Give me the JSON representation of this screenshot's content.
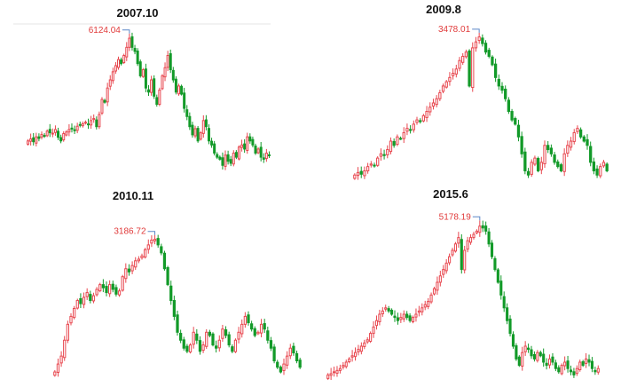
{
  "colors": {
    "up": "#e8474f",
    "down": "#129a29",
    "peak": "#e03a3a",
    "leader": "#5b87c7"
  },
  "chart_data": [
    {
      "type": "candlestick",
      "title": "2007.10",
      "peak_label": "6124.04",
      "peak_index": 37,
      "ylim": [
        2700,
        6300
      ],
      "closes": [
        3600,
        3650,
        3580,
        3700,
        3660,
        3760,
        3720,
        3840,
        3800,
        3790,
        3880,
        3690,
        3600,
        3780,
        3820,
        3880,
        3900,
        3850,
        3960,
        3990,
        4020,
        4060,
        4000,
        4100,
        4150,
        3950,
        4250,
        4620,
        4550,
        4900,
        5100,
        5300,
        5450,
        5600,
        5500,
        5700,
        5900,
        6124,
        5900,
        5800,
        5500,
        5200,
        5350,
        4900,
        4800,
        5100,
        4700,
        4500,
        4850,
        5200,
        5400,
        5700,
        5350,
        5100,
        4800,
        4950,
        4750,
        4400,
        4200,
        3950,
        3750,
        3900,
        3600,
        3800,
        4100,
        3950,
        3600,
        3500,
        3300,
        3200,
        3150,
        3000,
        3250,
        3100,
        3050,
        3300,
        3200,
        3450,
        3500,
        3400,
        3700,
        3600,
        3500,
        3300,
        3400,
        3200,
        3150,
        3300,
        3250
      ]
    },
    {
      "type": "candlestick",
      "title": "2009.8",
      "peak_label": "3478.01",
      "peak_index": 38,
      "ylim": [
        1800,
        3600
      ],
      "closes": [
        1850,
        1880,
        1860,
        1900,
        1950,
        1980,
        1960,
        2050,
        2100,
        2080,
        2150,
        2250,
        2200,
        2300,
        2280,
        2350,
        2400,
        2380,
        2450,
        2500,
        2480,
        2550,
        2600,
        2650,
        2700,
        2750,
        2820,
        2900,
        2950,
        3000,
        3050,
        3100,
        3200,
        3250,
        3300,
        2900,
        3350,
        3420,
        3478,
        3400,
        3300,
        3250,
        3150,
        3000,
        2900,
        2850,
        2750,
        2600,
        2500,
        2450,
        2300,
        2100,
        1900,
        1850,
        2000,
        2050,
        1900,
        2000,
        2200,
        2150,
        2100,
        2000,
        1950,
        1900,
        2100,
        2200,
        2250,
        2350,
        2400,
        2300,
        2250,
        2200,
        2000,
        1900,
        1850,
        1950,
        2000,
        1900
      ]
    },
    {
      "type": "candlestick",
      "title": "2010.11",
      "peak_label": "3186.72",
      "peak_index": 31,
      "ylim": [
        2300,
        3250
      ],
      "closes": [
        2350,
        2400,
        2450,
        2550,
        2650,
        2700,
        2750,
        2800,
        2780,
        2820,
        2850,
        2800,
        2830,
        2870,
        2900,
        2880,
        2850,
        2900,
        2870,
        2840,
        2860,
        2950,
        3000,
        2980,
        3020,
        3050,
        3060,
        3080,
        3120,
        3150,
        3180,
        3186,
        3150,
        3100,
        3000,
        2900,
        2800,
        2700,
        2600,
        2550,
        2500,
        2480,
        2520,
        2600,
        2550,
        2480,
        2520,
        2600,
        2580,
        2520,
        2500,
        2550,
        2620,
        2580,
        2520,
        2480,
        2550,
        2600,
        2650,
        2700,
        2660,
        2620,
        2580,
        2600,
        2650,
        2620,
        2550,
        2500,
        2420,
        2380,
        2350,
        2400,
        2450,
        2500,
        2470,
        2420,
        2380
      ]
    },
    {
      "type": "candlestick",
      "title": "2015.6",
      "peak_label": "5178.19",
      "peak_index": 50,
      "ylim": [
        2800,
        5300
      ],
      "closes": [
        2850,
        2870,
        2900,
        2920,
        2950,
        3000,
        3050,
        3100,
        3150,
        3200,
        3250,
        3300,
        3350,
        3400,
        3500,
        3600,
        3700,
        3800,
        3850,
        3900,
        3850,
        3800,
        3750,
        3700,
        3750,
        3800,
        3750,
        3700,
        3750,
        3800,
        3850,
        3900,
        3950,
        4000,
        4100,
        4200,
        4300,
        4400,
        4500,
        4600,
        4700,
        4800,
        4900,
        5000,
        4500,
        4800,
        4950,
        5000,
        5050,
        5100,
        5178,
        5150,
        5100,
        4900,
        4700,
        4500,
        4300,
        4100,
        3900,
        3700,
        3500,
        3300,
        3100,
        3000,
        3200,
        3300,
        3250,
        3150,
        3100,
        3200,
        3150,
        3050,
        3000,
        3100,
        3050,
        2950,
        2900,
        3000,
        3050,
        2950,
        2900,
        2850,
        2950,
        3050,
        3000,
        3100,
        3050,
        2950,
        2900,
        2950
      ]
    }
  ]
}
